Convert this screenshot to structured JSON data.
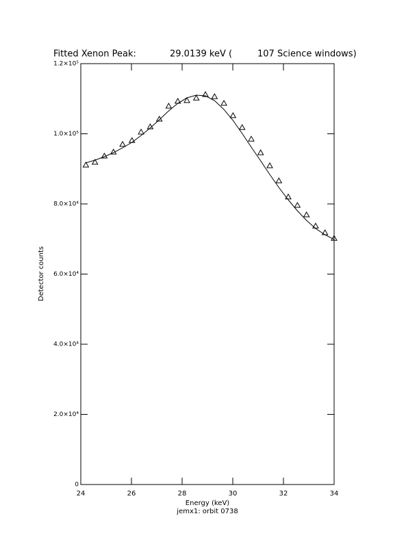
{
  "chart_data": {
    "type": "scatter",
    "title_parts": [
      "Fitted Xenon Peak:",
      "29.0139 keV (",
      "107 Science windows)"
    ],
    "xlabel": "Energy (keV)",
    "ylabel": "Detector counts",
    "subtitle": "jemx1: orbit 0738",
    "x": [
      24.2,
      24.56,
      24.93,
      25.29,
      25.65,
      26.02,
      26.38,
      26.74,
      27.1,
      27.47,
      27.83,
      28.19,
      28.56,
      28.92,
      29.28,
      29.65,
      30.01,
      30.37,
      30.73,
      31.1,
      31.46,
      31.82,
      32.19,
      32.55,
      32.91,
      33.27,
      33.64,
      34.0
    ],
    "series": [
      {
        "marker": "triangle",
        "color": "#000000",
        "values": [
          91100,
          91900,
          93650,
          94800,
          97000,
          98100,
          100500,
          102000,
          104200,
          107900,
          109300,
          109500,
          110200,
          111200,
          110600,
          108700,
          105200,
          101800,
          98500,
          94600,
          90900,
          86600,
          82000,
          79600,
          76900,
          73700,
          71800,
          70200
        ]
      },
      {
        "marker": "line",
        "color": "#000000",
        "values": [
          91710,
          92490,
          93460,
          94630,
          96000,
          97560,
          99510,
          101660,
          104000,
          106540,
          108680,
          110240,
          111020,
          110830,
          109460,
          106930,
          103800,
          100100,
          96200,
          92290,
          88390,
          84680,
          81170,
          78050,
          75320,
          72980,
          71220,
          69850
        ]
      }
    ],
    "xlim": [
      24,
      34
    ],
    "xticks": [
      24,
      26,
      28,
      30,
      32,
      34
    ],
    "ylim": [
      0,
      120000
    ],
    "yticks": [
      0,
      {
        "value": 20000,
        "label": "2.0×10⁴"
      },
      {
        "value": 40000,
        "label": "4.0×10⁴"
      },
      {
        "value": 60000,
        "label": "6.0×10⁴"
      },
      {
        "value": 80000,
        "label": "8.0×10⁴"
      },
      {
        "value": 100000,
        "label": "1.0×10⁵"
      },
      {
        "value": 120000,
        "label": "1.2×10⁵"
      }
    ]
  }
}
